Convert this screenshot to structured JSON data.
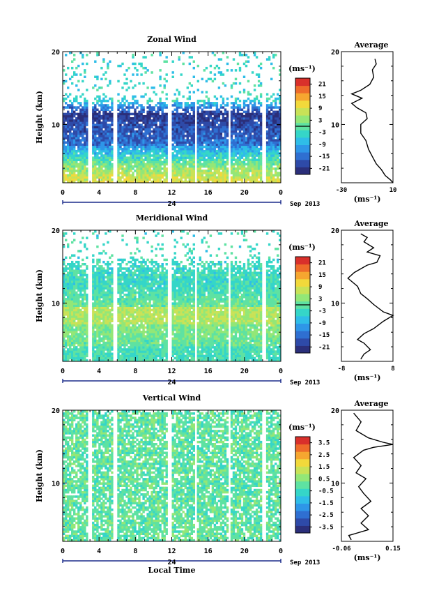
{
  "chart_data": [
    {
      "type": "heatmap",
      "title": "Zonal Wind",
      "ylabel": "Height (km)",
      "ylim": [
        2,
        20
      ],
      "y_ticks": [
        {
          "v": 20,
          "t": "20"
        },
        {
          "v": 10,
          "t": "10"
        }
      ],
      "x_ticks": [
        "0",
        "4",
        "8",
        "12",
        "16",
        "20",
        "0"
      ],
      "date_label": "24",
      "month_label": "Sep 2013",
      "colorbar": {
        "unit": "(ms⁻¹)",
        "ticks": [
          "21",
          "15",
          "9",
          "3",
          "-3",
          "-9",
          "-15",
          "-21"
        ],
        "range": [
          -24,
          24
        ]
      },
      "profile": {
        "title": "Average",
        "xlabel": "(ms⁻¹)",
        "x_ticks": [
          "-30",
          "10"
        ],
        "xlim": [
          -30,
          10
        ],
        "y_ticks": [
          "20",
          "10"
        ],
        "points": [
          [
            -4,
            19.0
          ],
          [
            -3,
            18.3
          ],
          [
            -6,
            17.5
          ],
          [
            -5,
            16.5
          ],
          [
            -8,
            15.5
          ],
          [
            -15,
            14.7
          ],
          [
            -22,
            14.2
          ],
          [
            -14,
            13.6
          ],
          [
            -22,
            12.9
          ],
          [
            -18,
            12.3
          ],
          [
            -11,
            11.6
          ],
          [
            -10,
            10.8
          ],
          [
            -15,
            10.0
          ],
          [
            -15,
            8.8
          ],
          [
            -11,
            7.8
          ],
          [
            -9,
            6.6
          ],
          [
            -6,
            5.6
          ],
          [
            -3,
            4.6
          ],
          [
            1,
            3.8
          ],
          [
            4,
            3.0
          ],
          [
            8,
            2.4
          ],
          [
            10,
            2.0
          ]
        ]
      },
      "gaps": [
        [
          2.8,
          3.3
        ],
        [
          5.6,
          5.9
        ],
        [
          11.6,
          12.0
        ],
        [
          14.5,
          14.8
        ],
        [
          18.2,
          18.5
        ],
        [
          21.9,
          22.3
        ]
      ]
    },
    {
      "type": "heatmap",
      "title": "Meridional Wind",
      "ylabel": "Height (km)",
      "ylim": [
        2,
        20
      ],
      "y_ticks": [
        {
          "v": 20,
          "t": "20"
        },
        {
          "v": 10,
          "t": "10"
        }
      ],
      "x_ticks": [
        "0",
        "4",
        "8",
        "12",
        "16",
        "20",
        "0"
      ],
      "date_label": "24",
      "month_label": "Sep 2013",
      "colorbar": {
        "unit": "(ms⁻¹)",
        "ticks": [
          "21",
          "15",
          "9",
          "3",
          "-3",
          "-9",
          "-15",
          "-21"
        ],
        "range": [
          -24,
          24
        ]
      },
      "profile": {
        "title": "Average",
        "xlabel": "(ms⁻¹)",
        "x_ticks": [
          "-8",
          "8"
        ],
        "xlim": [
          -8,
          8
        ],
        "y_ticks": [
          "20",
          "10"
        ],
        "points": [
          [
            -2,
            19.5
          ],
          [
            0,
            19.0
          ],
          [
            -1,
            18.4
          ],
          [
            2,
            17.6
          ],
          [
            0,
            17.0
          ],
          [
            4,
            16.5
          ],
          [
            3,
            15.6
          ],
          [
            0,
            15.2
          ],
          [
            -4,
            14.2
          ],
          [
            -6,
            13.4
          ],
          [
            -3,
            12.3
          ],
          [
            -2,
            11.3
          ],
          [
            0,
            10.6
          ],
          [
            2,
            9.8
          ],
          [
            5,
            8.8
          ],
          [
            8,
            8.3
          ],
          [
            5,
            7.5
          ],
          [
            2,
            6.5
          ],
          [
            -1,
            5.8
          ],
          [
            -3,
            5.0
          ],
          [
            -1,
            4.5
          ],
          [
            1,
            3.6
          ],
          [
            -1,
            3.0
          ],
          [
            -2,
            2.3
          ]
        ]
      },
      "gaps": [
        [
          2.8,
          3.3
        ],
        [
          5.6,
          5.9
        ],
        [
          11.6,
          12.0
        ],
        [
          14.5,
          14.8
        ],
        [
          18.2,
          18.5
        ],
        [
          21.9,
          22.3
        ]
      ]
    },
    {
      "type": "heatmap",
      "title": "Vertical Wind",
      "ylabel": "Height (km)",
      "xlabel": "Local Time",
      "ylim": [
        2,
        20
      ],
      "y_ticks": [
        {
          "v": 20,
          "t": "20"
        },
        {
          "v": 10,
          "t": "10"
        }
      ],
      "x_ticks": [
        "0",
        "4",
        "8",
        "12",
        "16",
        "20",
        "0"
      ],
      "date_label": "24",
      "month_label": "Sep 2013",
      "colorbar": {
        "unit": "(ms⁻¹)",
        "ticks": [
          "3.5",
          "2.5",
          "1.5",
          "0.5",
          "-0.5",
          "-1.5",
          "-2.5",
          "-3.5"
        ],
        "range": [
          -4,
          4
        ]
      },
      "profile": {
        "title": "Average",
        "xlabel": "(ms⁻¹)",
        "x_ticks": [
          "-0.06",
          "0.15"
        ],
        "xlim": [
          -0.06,
          0.15
        ],
        "y_ticks": [
          "20",
          "10"
        ],
        "points": [
          [
            -0.01,
            19.6
          ],
          [
            0.02,
            18.4
          ],
          [
            0.0,
            17.2
          ],
          [
            0.05,
            16.2
          ],
          [
            0.11,
            15.6
          ],
          [
            0.15,
            15.3
          ],
          [
            0.07,
            14.9
          ],
          [
            0.03,
            14.5
          ],
          [
            -0.01,
            13.5
          ],
          [
            0.02,
            12.4
          ],
          [
            0.0,
            11.4
          ],
          [
            0.04,
            10.6
          ],
          [
            0.01,
            9.5
          ],
          [
            0.03,
            8.6
          ],
          [
            0.06,
            7.5
          ],
          [
            0.02,
            6.5
          ],
          [
            0.05,
            5.5
          ],
          [
            0.02,
            4.5
          ],
          [
            0.05,
            3.6
          ],
          [
            -0.03,
            2.8
          ],
          [
            -0.02,
            2.2
          ]
        ]
      },
      "gaps": [
        [
          2.8,
          3.3
        ],
        [
          5.6,
          5.9
        ],
        [
          11.6,
          12.0
        ],
        [
          14.5,
          14.8
        ],
        [
          18.2,
          18.5
        ],
        [
          21.9,
          22.3
        ]
      ]
    }
  ]
}
